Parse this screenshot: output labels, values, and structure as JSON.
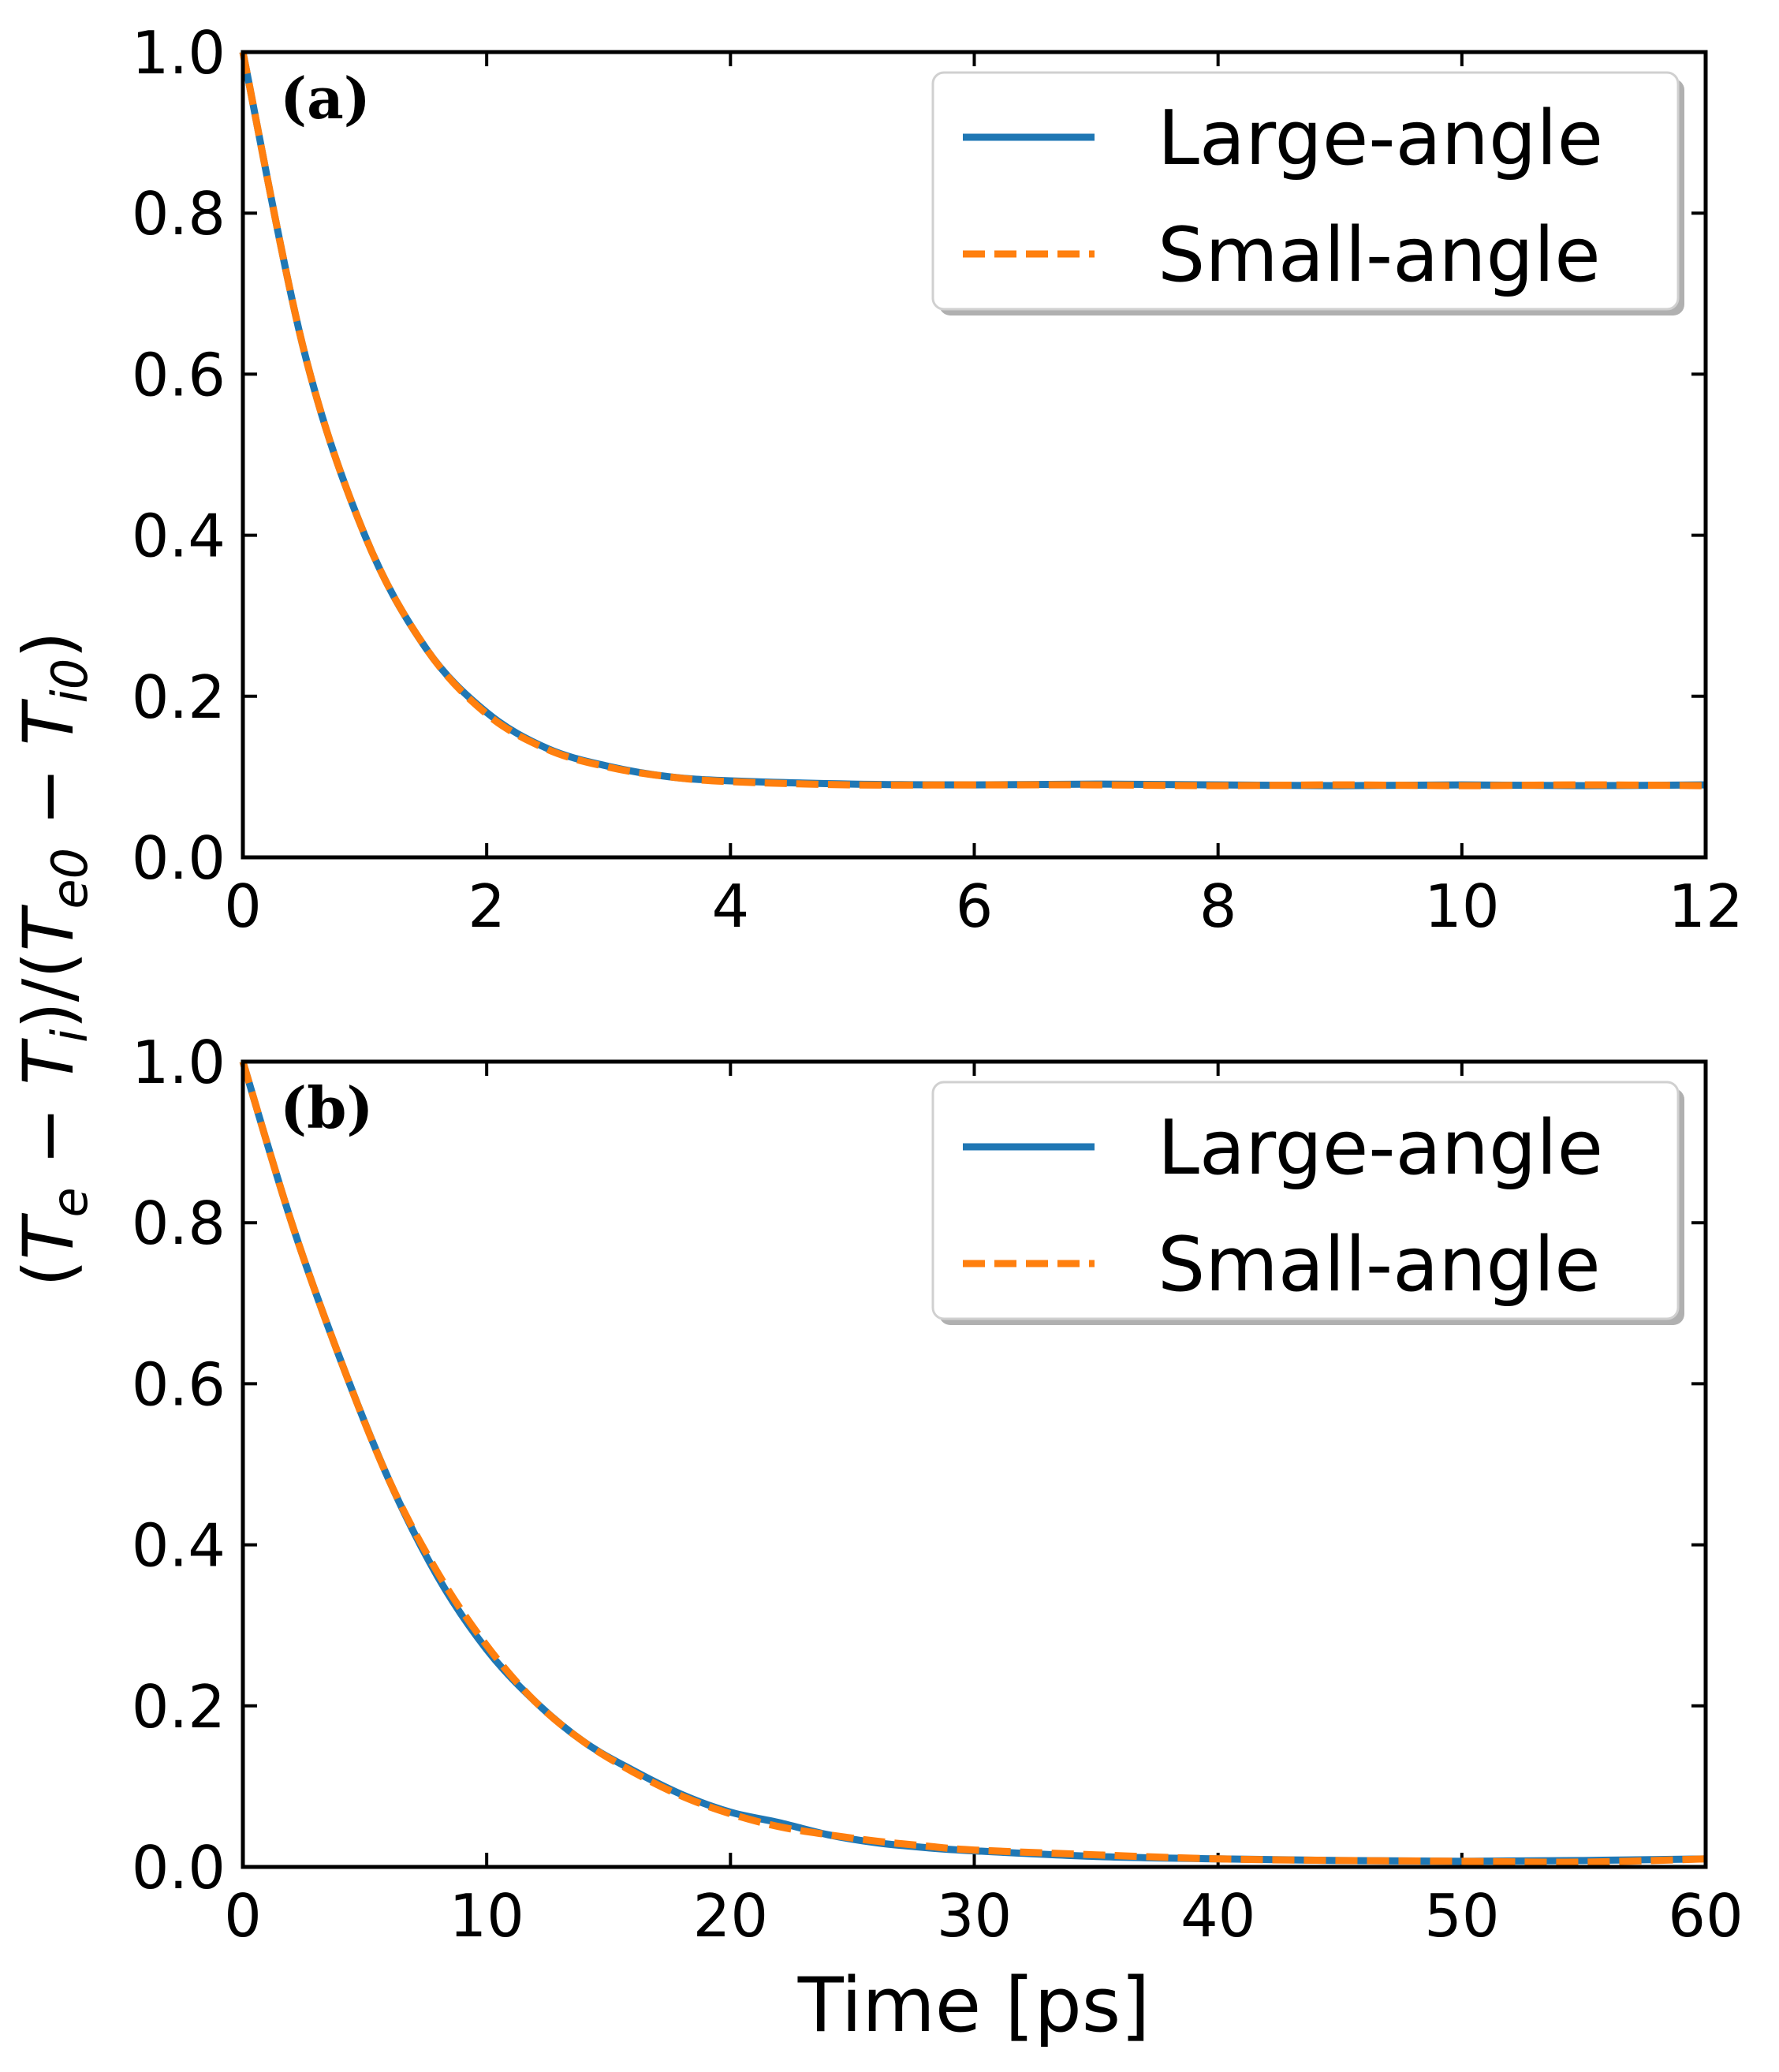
{
  "colors": {
    "large": "#1f77b4",
    "small": "#ff7f0e",
    "axes": "#000000"
  },
  "ylabel": {
    "open1": "(",
    "Te": "T",
    "e": "e",
    "minus1": " − ",
    "Ti": "T",
    "i": "i",
    "mid": ")/(",
    "Te0": "T",
    "e0": "e0",
    "minus2": " − ",
    "Ti0": "T",
    "i0": "i0",
    "close": ")"
  },
  "chart_data": [
    {
      "type": "line",
      "panel": "(a)",
      "xlim": [
        0,
        12
      ],
      "ylim": [
        0,
        1
      ],
      "xticks": [
        0,
        2,
        4,
        6,
        8,
        10,
        12
      ],
      "xtick_labels": [
        "0",
        "2",
        "4",
        "6",
        "8",
        "10",
        "12"
      ],
      "yticks": [
        0,
        0.2,
        0.4,
        0.6,
        0.8,
        1.0
      ],
      "ytick_labels": [
        "0.0",
        "0.2",
        "0.4",
        "0.6",
        "0.8",
        "1.0"
      ],
      "xlabel": "",
      "legend_location": "top-right",
      "x": [
        0,
        0.5,
        1,
        1.5,
        2,
        2.5,
        3,
        3.5,
        4,
        5,
        6,
        7,
        8,
        9,
        10,
        11,
        12
      ],
      "series": [
        {
          "name": "Large-angle",
          "style": "solid",
          "values": [
            1.0,
            0.63,
            0.4,
            0.26,
            0.18,
            0.135,
            0.113,
            0.1,
            0.095,
            0.091,
            0.09,
            0.091,
            0.09,
            0.089,
            0.09,
            0.089,
            0.09
          ]
        },
        {
          "name": "Small-angle",
          "style": "dashed",
          "values": [
            1.0,
            0.63,
            0.4,
            0.26,
            0.178,
            0.134,
            0.112,
            0.1,
            0.094,
            0.09,
            0.09,
            0.09,
            0.089,
            0.09,
            0.089,
            0.09,
            0.089
          ]
        }
      ]
    },
    {
      "type": "line",
      "panel": "(b)",
      "xlim": [
        0,
        60
      ],
      "ylim": [
        0,
        1
      ],
      "xticks": [
        0,
        10,
        20,
        30,
        40,
        50,
        60
      ],
      "xtick_labels": [
        "0",
        "10",
        "20",
        "30",
        "40",
        "50",
        "60"
      ],
      "yticks": [
        0,
        0.2,
        0.4,
        0.6,
        0.8,
        1.0
      ],
      "ytick_labels": [
        "0.0",
        "0.2",
        "0.4",
        "0.6",
        "0.8",
        "1.0"
      ],
      "xlabel": "Time [ps]",
      "legend_location": "top-right",
      "x": [
        0,
        2,
        4,
        6,
        8,
        10,
        12,
        14,
        16,
        18,
        20,
        22,
        24,
        26,
        28,
        30,
        35,
        40,
        45,
        50,
        55,
        60
      ],
      "series": [
        {
          "name": "Large-angle",
          "style": "solid",
          "values": [
            1.0,
            0.8,
            0.63,
            0.48,
            0.36,
            0.27,
            0.205,
            0.155,
            0.12,
            0.09,
            0.068,
            0.055,
            0.04,
            0.03,
            0.024,
            0.02,
            0.013,
            0.01,
            0.008,
            0.007,
            0.008,
            0.01
          ]
        },
        {
          "name": "Small-angle",
          "style": "dashed",
          "values": [
            1.0,
            0.8,
            0.63,
            0.48,
            0.365,
            0.275,
            0.205,
            0.155,
            0.118,
            0.088,
            0.066,
            0.05,
            0.04,
            0.032,
            0.026,
            0.021,
            0.015,
            0.01,
            0.008,
            0.007,
            0.006,
            0.01
          ]
        }
      ]
    }
  ]
}
